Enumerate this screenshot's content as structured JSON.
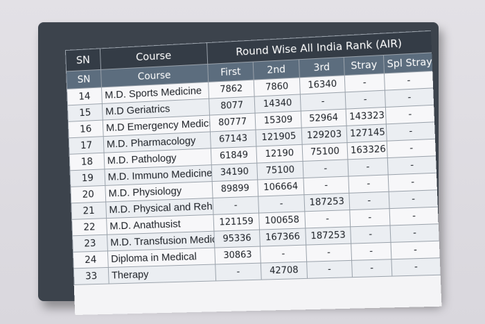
{
  "header": {
    "sn": "SN",
    "course": "Course",
    "group_title": "Round Wise  All India Rank (AIR)",
    "sub_sn": "SN",
    "sub_course": "Course",
    "rounds": [
      "First",
      "2nd",
      "3rd",
      "Stray",
      "Spl Stray"
    ]
  },
  "rows": [
    {
      "sn": "14",
      "course": "M.D. Sports Medicine",
      "first": "7862",
      "second": "7860",
      "third": "16340",
      "stray": "-",
      "spl": "-"
    },
    {
      "sn": "15",
      "course": "M.D Geriatrics",
      "first": "8077",
      "second": "14340",
      "third": "-",
      "stray": "-",
      "spl": "-"
    },
    {
      "sn": "16",
      "course": "M.D Emergency Medicine",
      "first": "80777",
      "second": "15309",
      "third": "52964",
      "stray": "143323",
      "spl": "-"
    },
    {
      "sn": "17",
      "course": "M.D. Pharmacology",
      "first": "67143",
      "second": "121905",
      "third": "129203",
      "stray": "127145",
      "spl": "-"
    },
    {
      "sn": "18",
      "course": "M.D. Pathology",
      "first": "61849",
      "second": "12190",
      "third": "75100",
      "stray": "163326",
      "spl": "-"
    },
    {
      "sn": "19",
      "course": "M.D. Immuno  Medicine",
      "first": "34190",
      "second": "75100",
      "third": "-",
      "stray": "-",
      "spl": "-"
    },
    {
      "sn": "20",
      "course": "M.D. Physiology",
      "first": "89899",
      "second": "106664",
      "third": "-",
      "stray": "-",
      "spl": "-"
    },
    {
      "sn": "21",
      "course": "M.D. Physical and Rehlit.",
      "first": "-",
      "second": "-",
      "third": "187253",
      "stray": "-",
      "spl": "-"
    },
    {
      "sn": "22",
      "course": "M.D. Anathusist",
      "first": "121159",
      "second": "100658",
      "third": "-",
      "stray": "-",
      "spl": "-"
    },
    {
      "sn": "23",
      "course": "M.D. Transfusion Medicine",
      "first": "95336",
      "second": "167366",
      "third": "187253",
      "stray": "-",
      "spl": "-"
    },
    {
      "sn": "24",
      "course": "Diploma in Medical",
      "first": "30863",
      "second": "-",
      "third": "-",
      "stray": "-",
      "spl": "-"
    },
    {
      "sn": "33",
      "course": "Therapy",
      "first": "-",
      "second": "42708",
      "third": "-",
      "stray": "-",
      "spl": "-"
    }
  ]
}
